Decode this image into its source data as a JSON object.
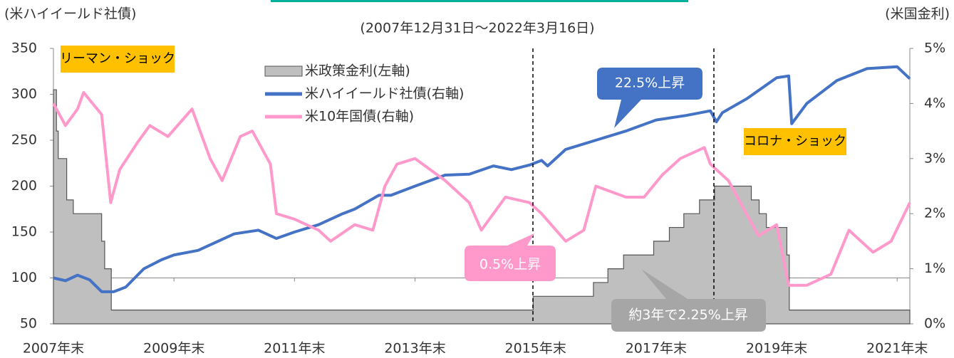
{
  "chart_data": {
    "type": "line",
    "subtitle": "(2007年12月31日～2022年3月16日)",
    "y_axis_label": "(米ハイイールド社債)",
    "y2_axis_label": "(米国金利)",
    "ylim": [
      50,
      350
    ],
    "yticks": [
      50,
      100,
      150,
      200,
      250,
      300,
      350
    ],
    "y2lim": [
      0,
      5
    ],
    "y2ticks": [
      {
        "value": 0,
        "label": "0%"
      },
      {
        "value": 1,
        "label": "1%"
      },
      {
        "value": 2,
        "label": "2%"
      },
      {
        "value": 3,
        "label": "3%"
      },
      {
        "value": 4,
        "label": "4%"
      },
      {
        "value": 5,
        "label": "5%"
      }
    ],
    "xlim": [
      2008.0,
      2022.21
    ],
    "xticks": [
      {
        "value": 2008,
        "label": "2007年末"
      },
      {
        "value": 2010,
        "label": "2009年末"
      },
      {
        "value": 2012,
        "label": "2011年末"
      },
      {
        "value": 2014,
        "label": "2013年末"
      },
      {
        "value": 2016,
        "label": "2015年末"
      },
      {
        "value": 2018,
        "label": "2017年末"
      },
      {
        "value": 2020,
        "label": "2019年末"
      },
      {
        "value": 2022,
        "label": "2021年末"
      }
    ],
    "x_axis_crossing": 100,
    "series": [
      {
        "name": "米政策金利(左軸)",
        "kind": "step-area",
        "color": "#bfbfbf",
        "axis": "y2",
        "x": [
          2008.0,
          2008.05,
          2008.08,
          2008.22,
          2008.33,
          2008.8,
          2008.85,
          2008.96,
          2015.96,
          2016.96,
          2017.2,
          2017.46,
          2017.96,
          2018.22,
          2018.46,
          2018.72,
          2018.97,
          2019.58,
          2019.71,
          2019.83,
          2020.17,
          2020.21,
          2022.21
        ],
        "values": [
          4.25,
          3.5,
          3.0,
          2.25,
          2.0,
          1.5,
          1.0,
          0.25,
          0.5,
          0.75,
          1.0,
          1.25,
          1.5,
          1.75,
          2.0,
          2.25,
          2.5,
          2.25,
          2.0,
          1.75,
          1.25,
          0.25,
          0.25
        ]
      },
      {
        "name": "米ハイイールド社債(右軸)",
        "kind": "line",
        "color": "#4472c4",
        "axis": "y",
        "x": [
          2008.0,
          2008.2,
          2008.4,
          2008.6,
          2008.8,
          2009.0,
          2009.2,
          2009.5,
          2009.8,
          2010.0,
          2010.4,
          2010.8,
          2011.0,
          2011.4,
          2011.7,
          2012.0,
          2012.4,
          2012.8,
          2013.0,
          2013.4,
          2013.6,
          2014.0,
          2014.5,
          2014.9,
          2015.3,
          2015.6,
          2015.9,
          2016.1,
          2016.2,
          2016.5,
          2017.0,
          2017.5,
          2018.0,
          2018.5,
          2018.9,
          2019.0,
          2019.1,
          2019.5,
          2020.0,
          2020.2,
          2020.25,
          2020.5,
          2020.9,
          2021.0,
          2021.5,
          2022.0,
          2022.21
        ],
        "values": [
          100,
          97,
          103,
          98,
          85,
          85,
          90,
          110,
          120,
          125,
          130,
          142,
          148,
          152,
          143,
          150,
          158,
          170,
          175,
          190,
          190,
          200,
          212,
          213,
          222,
          218,
          223,
          228,
          222,
          240,
          250,
          260,
          272,
          277,
          282,
          270,
          280,
          295,
          318,
          320,
          268,
          290,
          310,
          315,
          328,
          330,
          317
        ]
      },
      {
        "name": "米10年国債(右軸)",
        "kind": "line",
        "color": "#ff99cc",
        "axis": "y2",
        "x": [
          2008.0,
          2008.2,
          2008.4,
          2008.5,
          2008.8,
          2008.95,
          2009.1,
          2009.4,
          2009.6,
          2009.9,
          2010.3,
          2010.6,
          2010.8,
          2011.1,
          2011.3,
          2011.6,
          2011.7,
          2012.0,
          2012.4,
          2012.6,
          2013.0,
          2013.3,
          2013.5,
          2013.7,
          2014.0,
          2014.5,
          2014.9,
          2015.1,
          2015.5,
          2015.9,
          2016.1,
          2016.5,
          2016.8,
          2017.0,
          2017.5,
          2017.8,
          2018.1,
          2018.4,
          2018.8,
          2018.9,
          2019.2,
          2019.5,
          2019.7,
          2020.0,
          2020.2,
          2020.5,
          2020.9,
          2021.2,
          2021.6,
          2021.9,
          2022.21
        ],
        "values": [
          4.0,
          3.6,
          3.9,
          4.2,
          3.8,
          2.2,
          2.8,
          3.3,
          3.6,
          3.4,
          3.9,
          3.0,
          2.6,
          3.4,
          3.5,
          2.9,
          2.0,
          1.9,
          1.7,
          1.5,
          1.8,
          1.7,
          2.5,
          2.9,
          3.0,
          2.6,
          2.2,
          1.7,
          2.3,
          2.2,
          2.0,
          1.5,
          1.7,
          2.5,
          2.3,
          2.3,
          2.7,
          3.0,
          3.2,
          2.9,
          2.6,
          2.0,
          1.6,
          1.8,
          0.7,
          0.7,
          0.9,
          1.7,
          1.3,
          1.5,
          2.2
        ]
      }
    ],
    "annotations": [
      "リーマン・ショック",
      "コロナ・ショック",
      "22.5%上昇",
      "0.5%上昇",
      "約3年で2.25%上昇"
    ]
  }
}
